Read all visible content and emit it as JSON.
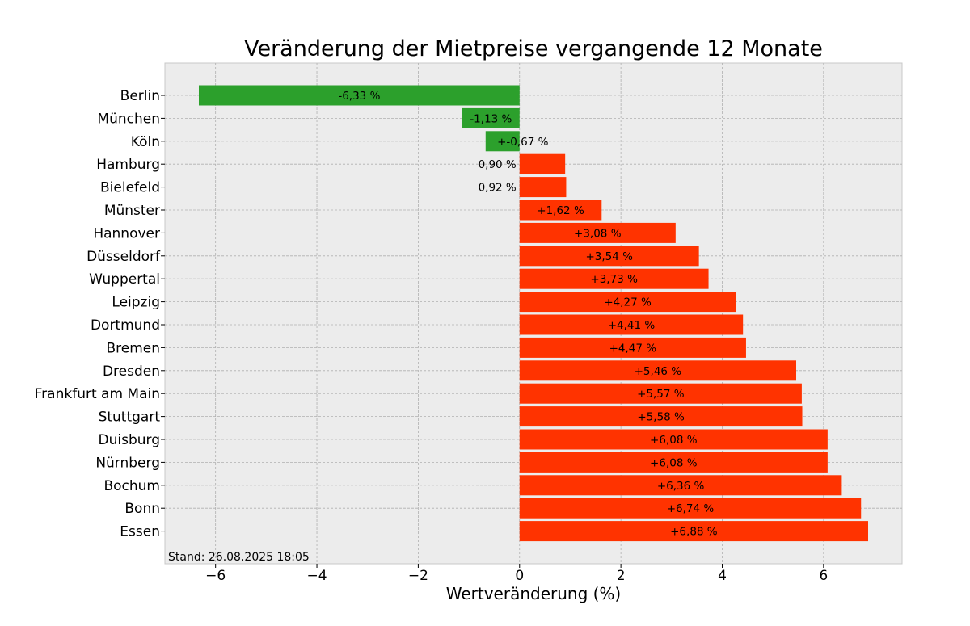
{
  "chart_data": {
    "type": "bar",
    "orientation": "horizontal",
    "title": "Veränderung der Mietpreise vergangende 12 Monate",
    "xlabel": "Wertveränderung (%)",
    "ylabel": "",
    "xlim": [
      -7,
      7.55
    ],
    "xticks": [
      -6,
      -4,
      -2,
      0,
      2,
      4,
      6
    ],
    "xtick_labels": [
      "−6",
      "−4",
      "−2",
      "0",
      "2",
      "4",
      "6"
    ],
    "grid": true,
    "categories": [
      "Berlin",
      "München",
      "Köln",
      "Hamburg",
      "Bielefeld",
      "Münster",
      "Hannover",
      "Düsseldorf",
      "Wuppertal",
      "Leipzig",
      "Dortmund",
      "Bremen",
      "Dresden",
      "Frankfurt am Main",
      "Stuttgart",
      "Duisburg",
      "Nürnberg",
      "Bochum",
      "Bonn",
      "Essen"
    ],
    "values": [
      -6.33,
      -1.13,
      -0.67,
      0.9,
      0.92,
      1.62,
      3.08,
      3.54,
      3.73,
      4.27,
      4.41,
      4.47,
      5.46,
      5.57,
      5.58,
      6.08,
      6.08,
      6.36,
      6.74,
      6.88
    ],
    "bar_labels": [
      "-6,33 %",
      "-1,13 %",
      "+-0,67 %",
      "0,90 %",
      "0,92 %",
      "+1,62 %",
      "+3,08 %",
      "+3,54 %",
      "+3,73 %",
      "+4,27 %",
      "+4,41 %",
      "+4,47 %",
      "+5,46 %",
      "+5,57 %",
      "+5,58 %",
      "+6,08 %",
      "+6,08 %",
      "+6,36 %",
      "+6,74 %",
      "+6,88 %"
    ],
    "colors": {
      "negative": "#2ca02c",
      "positive": "#ff3300",
      "plot_background": "#ececec",
      "grid": "#b0b0b0"
    },
    "annotation": "Stand: 26.08.2025 18:05"
  }
}
